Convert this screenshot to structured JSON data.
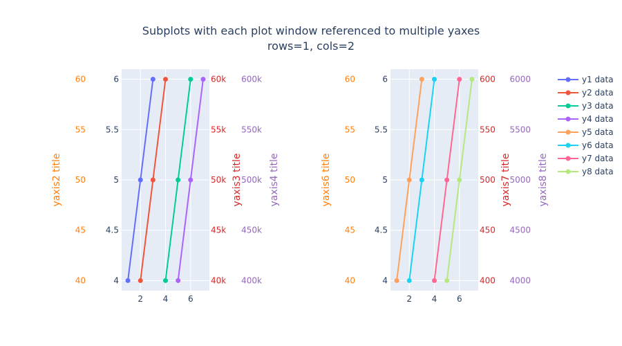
{
  "chart_data": {
    "type": "line",
    "title_lines": [
      "Subplots with each plot window   referenced to multiple yaxes",
      "rows=1, cols=2"
    ],
    "colors": {
      "background": "#ffffff",
      "plot_bg": "#e5ecf6",
      "grid": "#ffffff",
      "text": "#2a3f5f"
    },
    "legend": {
      "placement": "top-right",
      "items": [
        {
          "name": "y1 data",
          "color": "#636efa"
        },
        {
          "name": "y2 data",
          "color": "#ef553b"
        },
        {
          "name": "y3 data",
          "color": "#00cc96"
        },
        {
          "name": "y4 data",
          "color": "#ab63fa"
        },
        {
          "name": "y5 data",
          "color": "#ffa15a"
        },
        {
          "name": "y6 data",
          "color": "#19d3f3"
        },
        {
          "name": "y7 data",
          "color": "#ff6692"
        },
        {
          "name": "y8 data",
          "color": "#b6e880"
        }
      ]
    },
    "subplots": [
      {
        "xaxis": {
          "range": [
            0.5,
            7.5
          ],
          "ticks": [
            2,
            4,
            6
          ],
          "tick_labels": [
            "2",
            "4",
            "6"
          ]
        },
        "yaxes": [
          {
            "name": "yaxis1",
            "title": "",
            "color": "#2a3f5f",
            "side": "left-inner",
            "range": [
              3.9,
              6.1
            ],
            "ticks": [
              4,
              4.5,
              5,
              5.5,
              6
            ],
            "tick_labels": [
              "4",
              "4.5",
              "5",
              "5.5",
              "6"
            ]
          },
          {
            "name": "yaxis2",
            "title": "yaxis2 title",
            "color": "#ff7f0e",
            "side": "left-outer",
            "range": [
              39,
              61
            ],
            "ticks": [
              40,
              45,
              50,
              55,
              60
            ],
            "tick_labels": [
              "40",
              "45",
              "50",
              "55",
              "60"
            ]
          },
          {
            "name": "yaxis3",
            "title": "yaxis3 title",
            "color": "#d62728",
            "side": "right-inner",
            "range": [
              39000,
              61000
            ],
            "ticks": [
              40000,
              45000,
              50000,
              55000,
              60000
            ],
            "tick_labels": [
              "40k",
              "45k",
              "50k",
              "55k",
              "60k"
            ]
          },
          {
            "name": "yaxis4",
            "title": "yaxis4 title",
            "color": "#9467bd",
            "side": "right-outer",
            "range": [
              390000,
              610000
            ],
            "ticks": [
              400000,
              450000,
              500000,
              550000,
              600000
            ],
            "tick_labels": [
              "400k",
              "450k",
              "500k",
              "550k",
              "600k"
            ]
          }
        ],
        "series": [
          {
            "name": "y1 data",
            "color": "#636efa",
            "axis": 0,
            "x": [
              1,
              2,
              3
            ],
            "y": [
              4,
              5,
              6
            ]
          },
          {
            "name": "y2 data",
            "color": "#ef553b",
            "axis": 1,
            "x": [
              2,
              3,
              4
            ],
            "y": [
              40,
              50,
              60
            ]
          },
          {
            "name": "y3 data",
            "color": "#00cc96",
            "axis": 2,
            "x": [
              4,
              5,
              6
            ],
            "y": [
              40000,
              50000,
              60000
            ]
          },
          {
            "name": "y4 data",
            "color": "#ab63fa",
            "axis": 3,
            "x": [
              5,
              6,
              7
            ],
            "y": [
              400000,
              500000,
              600000
            ]
          }
        ]
      },
      {
        "xaxis": {
          "range": [
            0.5,
            7.5
          ],
          "ticks": [
            2,
            4,
            6
          ],
          "tick_labels": [
            "2",
            "4",
            "6"
          ]
        },
        "yaxes": [
          {
            "name": "yaxis5",
            "title": "",
            "color": "#2a3f5f",
            "side": "left-inner",
            "range": [
              3.9,
              6.1
            ],
            "ticks": [
              4,
              4.5,
              5,
              5.5,
              6
            ],
            "tick_labels": [
              "4",
              "4.5",
              "5",
              "5.5",
              "6"
            ]
          },
          {
            "name": "yaxis6",
            "title": "yaxis6 title",
            "color": "#ff7f0e",
            "side": "left-outer",
            "range": [
              39,
              61
            ],
            "ticks": [
              40,
              45,
              50,
              55,
              60
            ],
            "tick_labels": [
              "40",
              "45",
              "50",
              "55",
              "60"
            ]
          },
          {
            "name": "yaxis7",
            "title": "yaxis7 title",
            "color": "#d62728",
            "side": "right-inner",
            "range": [
              390,
              610
            ],
            "ticks": [
              400,
              450,
              500,
              550,
              600
            ],
            "tick_labels": [
              "400",
              "450",
              "500",
              "550",
              "600"
            ]
          },
          {
            "name": "yaxis8",
            "title": "yaxis8 title",
            "color": "#9467bd",
            "side": "right-outer",
            "range": [
              3900,
              6100
            ],
            "ticks": [
              4000,
              4500,
              5000,
              5500,
              6000
            ],
            "tick_labels": [
              "4000",
              "4500",
              "5000",
              "5500",
              "6000"
            ]
          }
        ],
        "series": [
          {
            "name": "y5 data",
            "color": "#ffa15a",
            "axis": 0,
            "x": [
              1,
              2,
              3
            ],
            "y": [
              4,
              5,
              6
            ]
          },
          {
            "name": "y6 data",
            "color": "#19d3f3",
            "axis": 1,
            "x": [
              2,
              3,
              4
            ],
            "y": [
              40,
              50,
              60
            ]
          },
          {
            "name": "y7 data",
            "color": "#ff6692",
            "axis": 2,
            "x": [
              4,
              5,
              6
            ],
            "y": [
              400,
              500,
              600
            ]
          },
          {
            "name": "y8 data",
            "color": "#b6e880",
            "axis": 3,
            "x": [
              5,
              6,
              7
            ],
            "y": [
              4000,
              5000,
              6000
            ]
          }
        ]
      }
    ]
  }
}
